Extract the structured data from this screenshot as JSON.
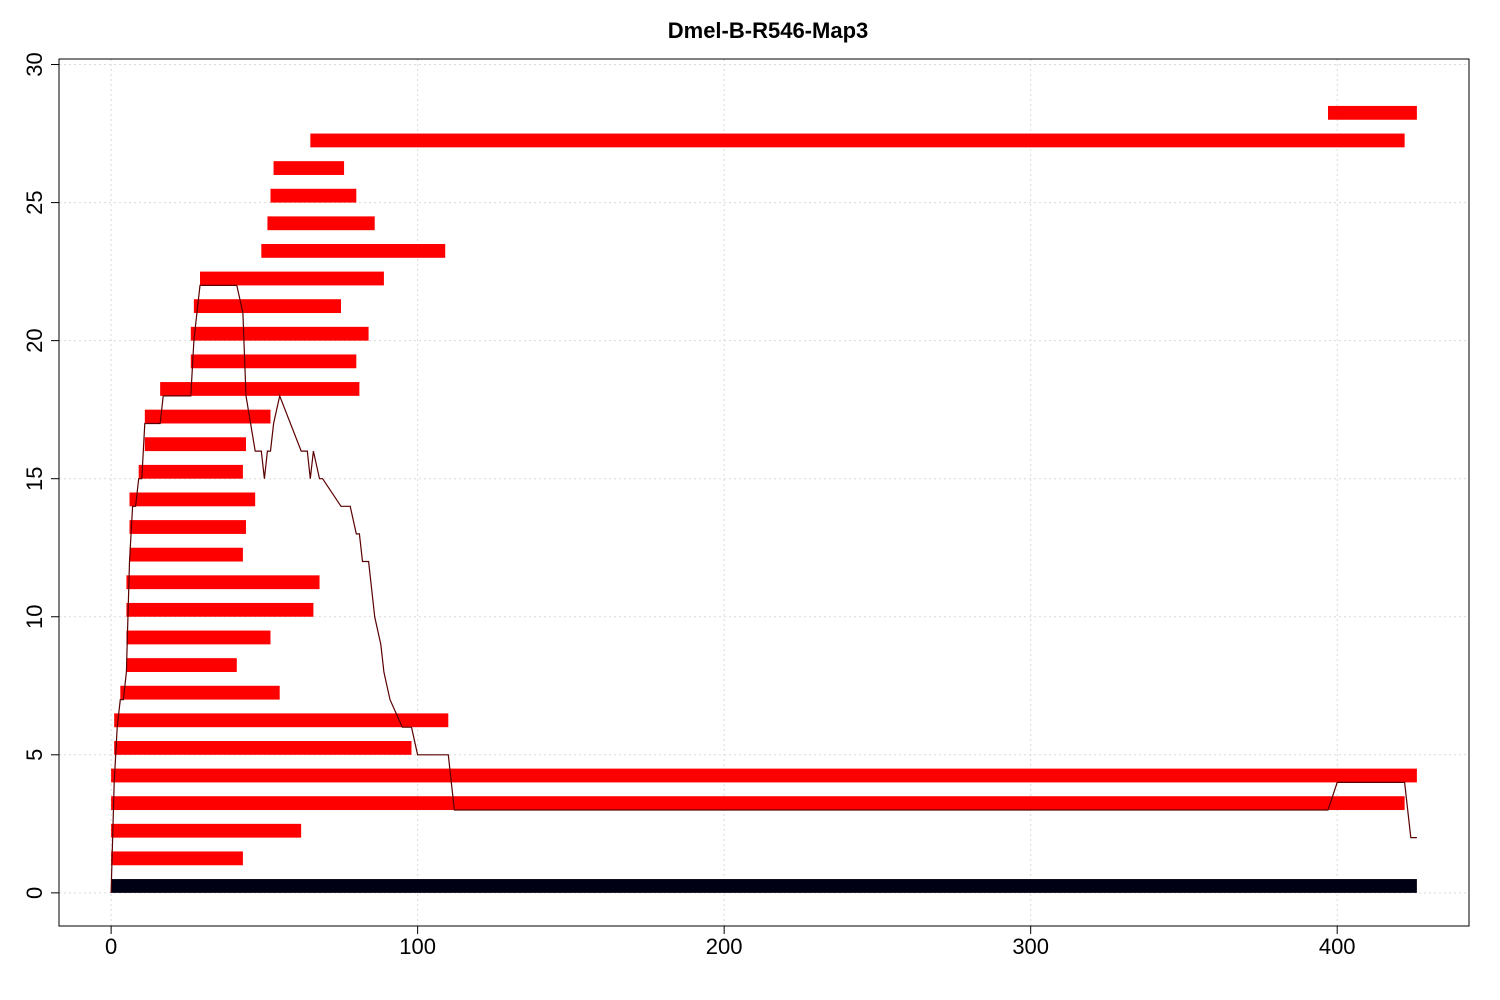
{
  "chart_data": {
    "type": "bar",
    "title": "Dmel-B-R546-Map3",
    "xlabel": "",
    "ylabel": "",
    "xlim": [
      -17,
      443
    ],
    "ylim": [
      -1.2,
      30.2
    ],
    "xticks": [
      0,
      100,
      200,
      300,
      400
    ],
    "yticks": [
      0,
      5,
      10,
      15,
      20,
      25,
      30
    ],
    "grid": true,
    "colors": {
      "segment": "#ff0000",
      "baseline": "#000014",
      "coverage": "#5a0000",
      "grid": "#d9d9d9"
    },
    "baseline": {
      "start": 0,
      "end": 426,
      "y": 0.25
    },
    "segments": [
      {
        "y": 1.25,
        "start": 0,
        "end": 43
      },
      {
        "y": 2.25,
        "start": 0,
        "end": 62
      },
      {
        "y": 3.25,
        "start": 0,
        "end": 422
      },
      {
        "y": 4.25,
        "start": 0,
        "end": 426
      },
      {
        "y": 5.25,
        "start": 1,
        "end": 98
      },
      {
        "y": 6.25,
        "start": 1,
        "end": 110
      },
      {
        "y": 7.25,
        "start": 3,
        "end": 55
      },
      {
        "y": 8.25,
        "start": 5,
        "end": 41
      },
      {
        "y": 9.25,
        "start": 5,
        "end": 52
      },
      {
        "y": 10.25,
        "start": 5,
        "end": 66
      },
      {
        "y": 11.25,
        "start": 5,
        "end": 68
      },
      {
        "y": 12.25,
        "start": 6,
        "end": 43
      },
      {
        "y": 13.25,
        "start": 6,
        "end": 44
      },
      {
        "y": 14.25,
        "start": 6,
        "end": 47
      },
      {
        "y": 15.25,
        "start": 9,
        "end": 43
      },
      {
        "y": 16.25,
        "start": 11,
        "end": 44
      },
      {
        "y": 17.25,
        "start": 11,
        "end": 52
      },
      {
        "y": 18.25,
        "start": 16,
        "end": 81
      },
      {
        "y": 19.25,
        "start": 26,
        "end": 80
      },
      {
        "y": 20.25,
        "start": 26,
        "end": 84
      },
      {
        "y": 21.25,
        "start": 27,
        "end": 75
      },
      {
        "y": 22.25,
        "start": 29,
        "end": 89
      },
      {
        "y": 23.25,
        "start": 49,
        "end": 109
      },
      {
        "y": 24.25,
        "start": 51,
        "end": 86
      },
      {
        "y": 25.25,
        "start": 52,
        "end": 80
      },
      {
        "y": 26.25,
        "start": 53,
        "end": 76
      },
      {
        "y": 27.25,
        "start": 65,
        "end": 422
      },
      {
        "y": 28.25,
        "start": 397,
        "end": 426
      }
    ],
    "coverage": {
      "x": [
        0,
        1,
        2,
        3,
        4,
        5,
        6,
        7,
        8,
        9,
        10,
        11,
        12,
        16,
        17,
        26,
        27,
        28,
        29,
        35,
        41,
        43,
        44,
        47,
        49,
        50,
        51,
        52,
        53,
        55,
        62,
        64,
        65,
        66,
        68,
        69,
        75,
        76,
        78,
        80,
        81,
        82,
        84,
        86,
        88,
        89,
        91,
        95,
        98,
        100,
        110,
        111,
        112,
        116,
        397,
        400,
        410,
        422,
        424,
        426
      ],
      "y": [
        0,
        4,
        6,
        7,
        7,
        8,
        12,
        14,
        14,
        15,
        15,
        17,
        17,
        17,
        18,
        18,
        20,
        21,
        22,
        22,
        22,
        21,
        18,
        16,
        16,
        15,
        16,
        16,
        17,
        18,
        16,
        16,
        15,
        16,
        15,
        15,
        14,
        14,
        14,
        13,
        13,
        12,
        12,
        10,
        9,
        8,
        7,
        6,
        6,
        5,
        5,
        4,
        3,
        3,
        3,
        4,
        4,
        4,
        2,
        2
      ]
    }
  }
}
